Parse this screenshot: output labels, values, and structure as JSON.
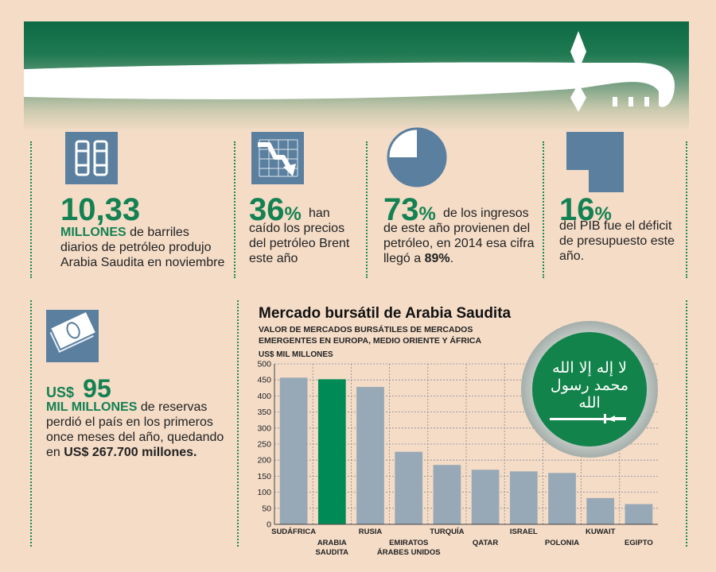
{
  "stats": [
    {
      "big": "10,33",
      "pct": "",
      "lead": "MILLONES",
      "text": " de barriles diarios de petróleo produjo Arabia Saudita en noviembre",
      "icon": "oil-barrels-icon"
    },
    {
      "big": "36",
      "pct": "%",
      "lead": "",
      "text": " han caído los precios del petróleo Brent este año",
      "icon": "falling-price-chart-icon"
    },
    {
      "big": "73",
      "pct": "%",
      "lead": "",
      "text": " de los ingresos de este año provienen del petróleo, en 2014 esa cifra llegó a ",
      "tail": "89%",
      "tail_end": ".",
      "icon": "pie-chart-icon"
    },
    {
      "big": "16",
      "pct": "%",
      "lead": "",
      "text": "del PIB fue el déficit de presupuesto este año.",
      "icon": "deficit-shape-icon"
    }
  ],
  "reserves": {
    "prefix": "US$",
    "big": "95",
    "lead": "MIL MILLONES",
    "text": " de reservas perdió el país en los primeros once meses del año, quedando en ",
    "tail": "US$ 267.700 millones.",
    "icon": "money-bills-icon"
  },
  "flag": {
    "shahada": "لا إله إلا الله محمد رسول الله",
    "icon": "saudi-flag-icon"
  },
  "chart_data": {
    "type": "bar",
    "title": "Mercado bursátil de Arabia Saudita",
    "subtitle": "VALOR DE MERCADOS BURSÁTILES DE MERCADOS EMERGENTES EN EUROPA, MEDIO ORIENTE Y ÁFRICA",
    "ylabel": "US$ MIL MILLONES",
    "ylim": [
      0,
      500
    ],
    "yticks": [
      0,
      50,
      100,
      150,
      200,
      250,
      300,
      350,
      400,
      450,
      500
    ],
    "grid": true,
    "categories": [
      "SUDÁFRICA",
      "ARABIA SAUDITA",
      "RUSIA",
      "EMIRATOS ÁRABES UNIDOS",
      "TURQUÍA",
      "QATAR",
      "ISRAEL",
      "POLONIA",
      "KUWAIT",
      "EGIPTO"
    ],
    "category_lines": [
      [
        "SUDÁFRICA"
      ],
      [
        "ARABIA",
        "SAUDITA"
      ],
      [
        "RUSIA"
      ],
      [
        "EMIRATOS",
        "ÁRABES UNIDOS"
      ],
      [
        "TURQUÍA"
      ],
      [
        "QATAR"
      ],
      [
        "ISRAEL"
      ],
      [
        "POLONIA"
      ],
      [
        "KUWAIT"
      ],
      [
        "EGIPTO"
      ]
    ],
    "values": [
      457,
      452,
      428,
      226,
      185,
      170,
      165,
      160,
      82,
      63
    ],
    "colors": {
      "default": "#97a8b6",
      "highlight": "#008a55",
      "highlight_category": "ARABIA SAUDITA"
    }
  }
}
